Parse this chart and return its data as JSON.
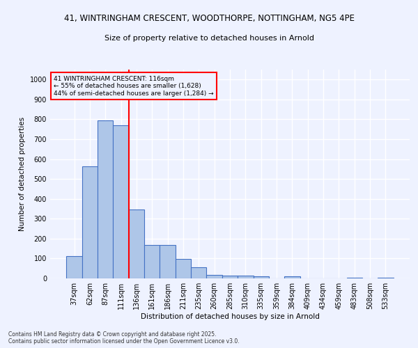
{
  "title_line1": "41, WINTRINGHAM CRESCENT, WOODTHORPE, NOTTINGHAM, NG5 4PE",
  "title_line2": "Size of property relative to detached houses in Arnold",
  "xlabel": "Distribution of detached houses by size in Arnold",
  "ylabel": "Number of detached properties",
  "categories": [
    "37sqm",
    "62sqm",
    "87sqm",
    "111sqm",
    "136sqm",
    "161sqm",
    "186sqm",
    "211sqm",
    "235sqm",
    "260sqm",
    "285sqm",
    "310sqm",
    "335sqm",
    "359sqm",
    "384sqm",
    "409sqm",
    "434sqm",
    "459sqm",
    "483sqm",
    "508sqm",
    "533sqm"
  ],
  "values": [
    112,
    563,
    795,
    770,
    348,
    168,
    168,
    97,
    55,
    18,
    13,
    13,
    10,
    0,
    10,
    0,
    0,
    0,
    5,
    0,
    5
  ],
  "bar_color": "#aec6e8",
  "bar_edge_color": "#4472c4",
  "property_line_color": "red",
  "annotation_text": "41 WINTRINGHAM CRESCENT: 116sqm\n← 55% of detached houses are smaller (1,628)\n44% of semi-detached houses are larger (1,284) →",
  "annotation_box_color": "red",
  "ylim": [
    0,
    1050
  ],
  "yticks": [
    0,
    100,
    200,
    300,
    400,
    500,
    600,
    700,
    800,
    900,
    1000
  ],
  "background_color": "#eef2ff",
  "grid_color": "#ffffff",
  "footer_text": "Contains HM Land Registry data © Crown copyright and database right 2025.\nContains public sector information licensed under the Open Government Licence v3.0.",
  "figsize": [
    6.0,
    5.0
  ],
  "dpi": 100
}
